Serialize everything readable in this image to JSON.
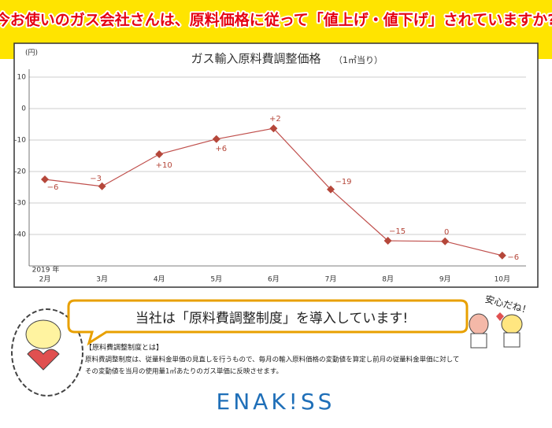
{
  "header": {
    "title": "今お使いのガス会社さんは、原料価格に従って「値上げ・値下げ」されていますか?"
  },
  "chart_data": {
    "type": "line",
    "title": "ガス輸入原料費調整価格",
    "subtitle": "（1㎥当り）",
    "y_unit": "(円)",
    "x_year_label": "2019 年",
    "categories": [
      "2月",
      "3月",
      "4月",
      "5月",
      "6月",
      "7月",
      "8月",
      "9月",
      "10月"
    ],
    "series": [
      {
        "name": "ガス輸入原料費調整価格",
        "color": "#c0504d",
        "values": [
          -22.5,
          -24.7,
          -14.5,
          -9.7,
          -6.3,
          -25.7,
          -42,
          -42.2,
          -46.7
        ]
      }
    ],
    "annotations": [
      "−6",
      "−3",
      "+10",
      "+6",
      "+2",
      "−19",
      "−15",
      "0",
      "−6"
    ],
    "ylim": [
      -50,
      12
    ],
    "yticks": [
      10,
      0,
      -10,
      -20,
      -30,
      -40
    ],
    "grid": true
  },
  "bubble": {
    "text": "当社は「原料費調整制度」を導入しています!"
  },
  "characters": {
    "speech": "安心だね！"
  },
  "explanation": {
    "heading": "【原料費調整制度とは】",
    "lines": [
      "原料費調整制度は、従量料金単価の見直しを行うもので、毎月の輸入原料価格の変動値を算定し前月の従量料金単価に対して",
      "その変動値を当月の使用量1㎥あたりのガス単価に反映させます。"
    ]
  },
  "logo": {
    "text": "ENAK!SS"
  }
}
